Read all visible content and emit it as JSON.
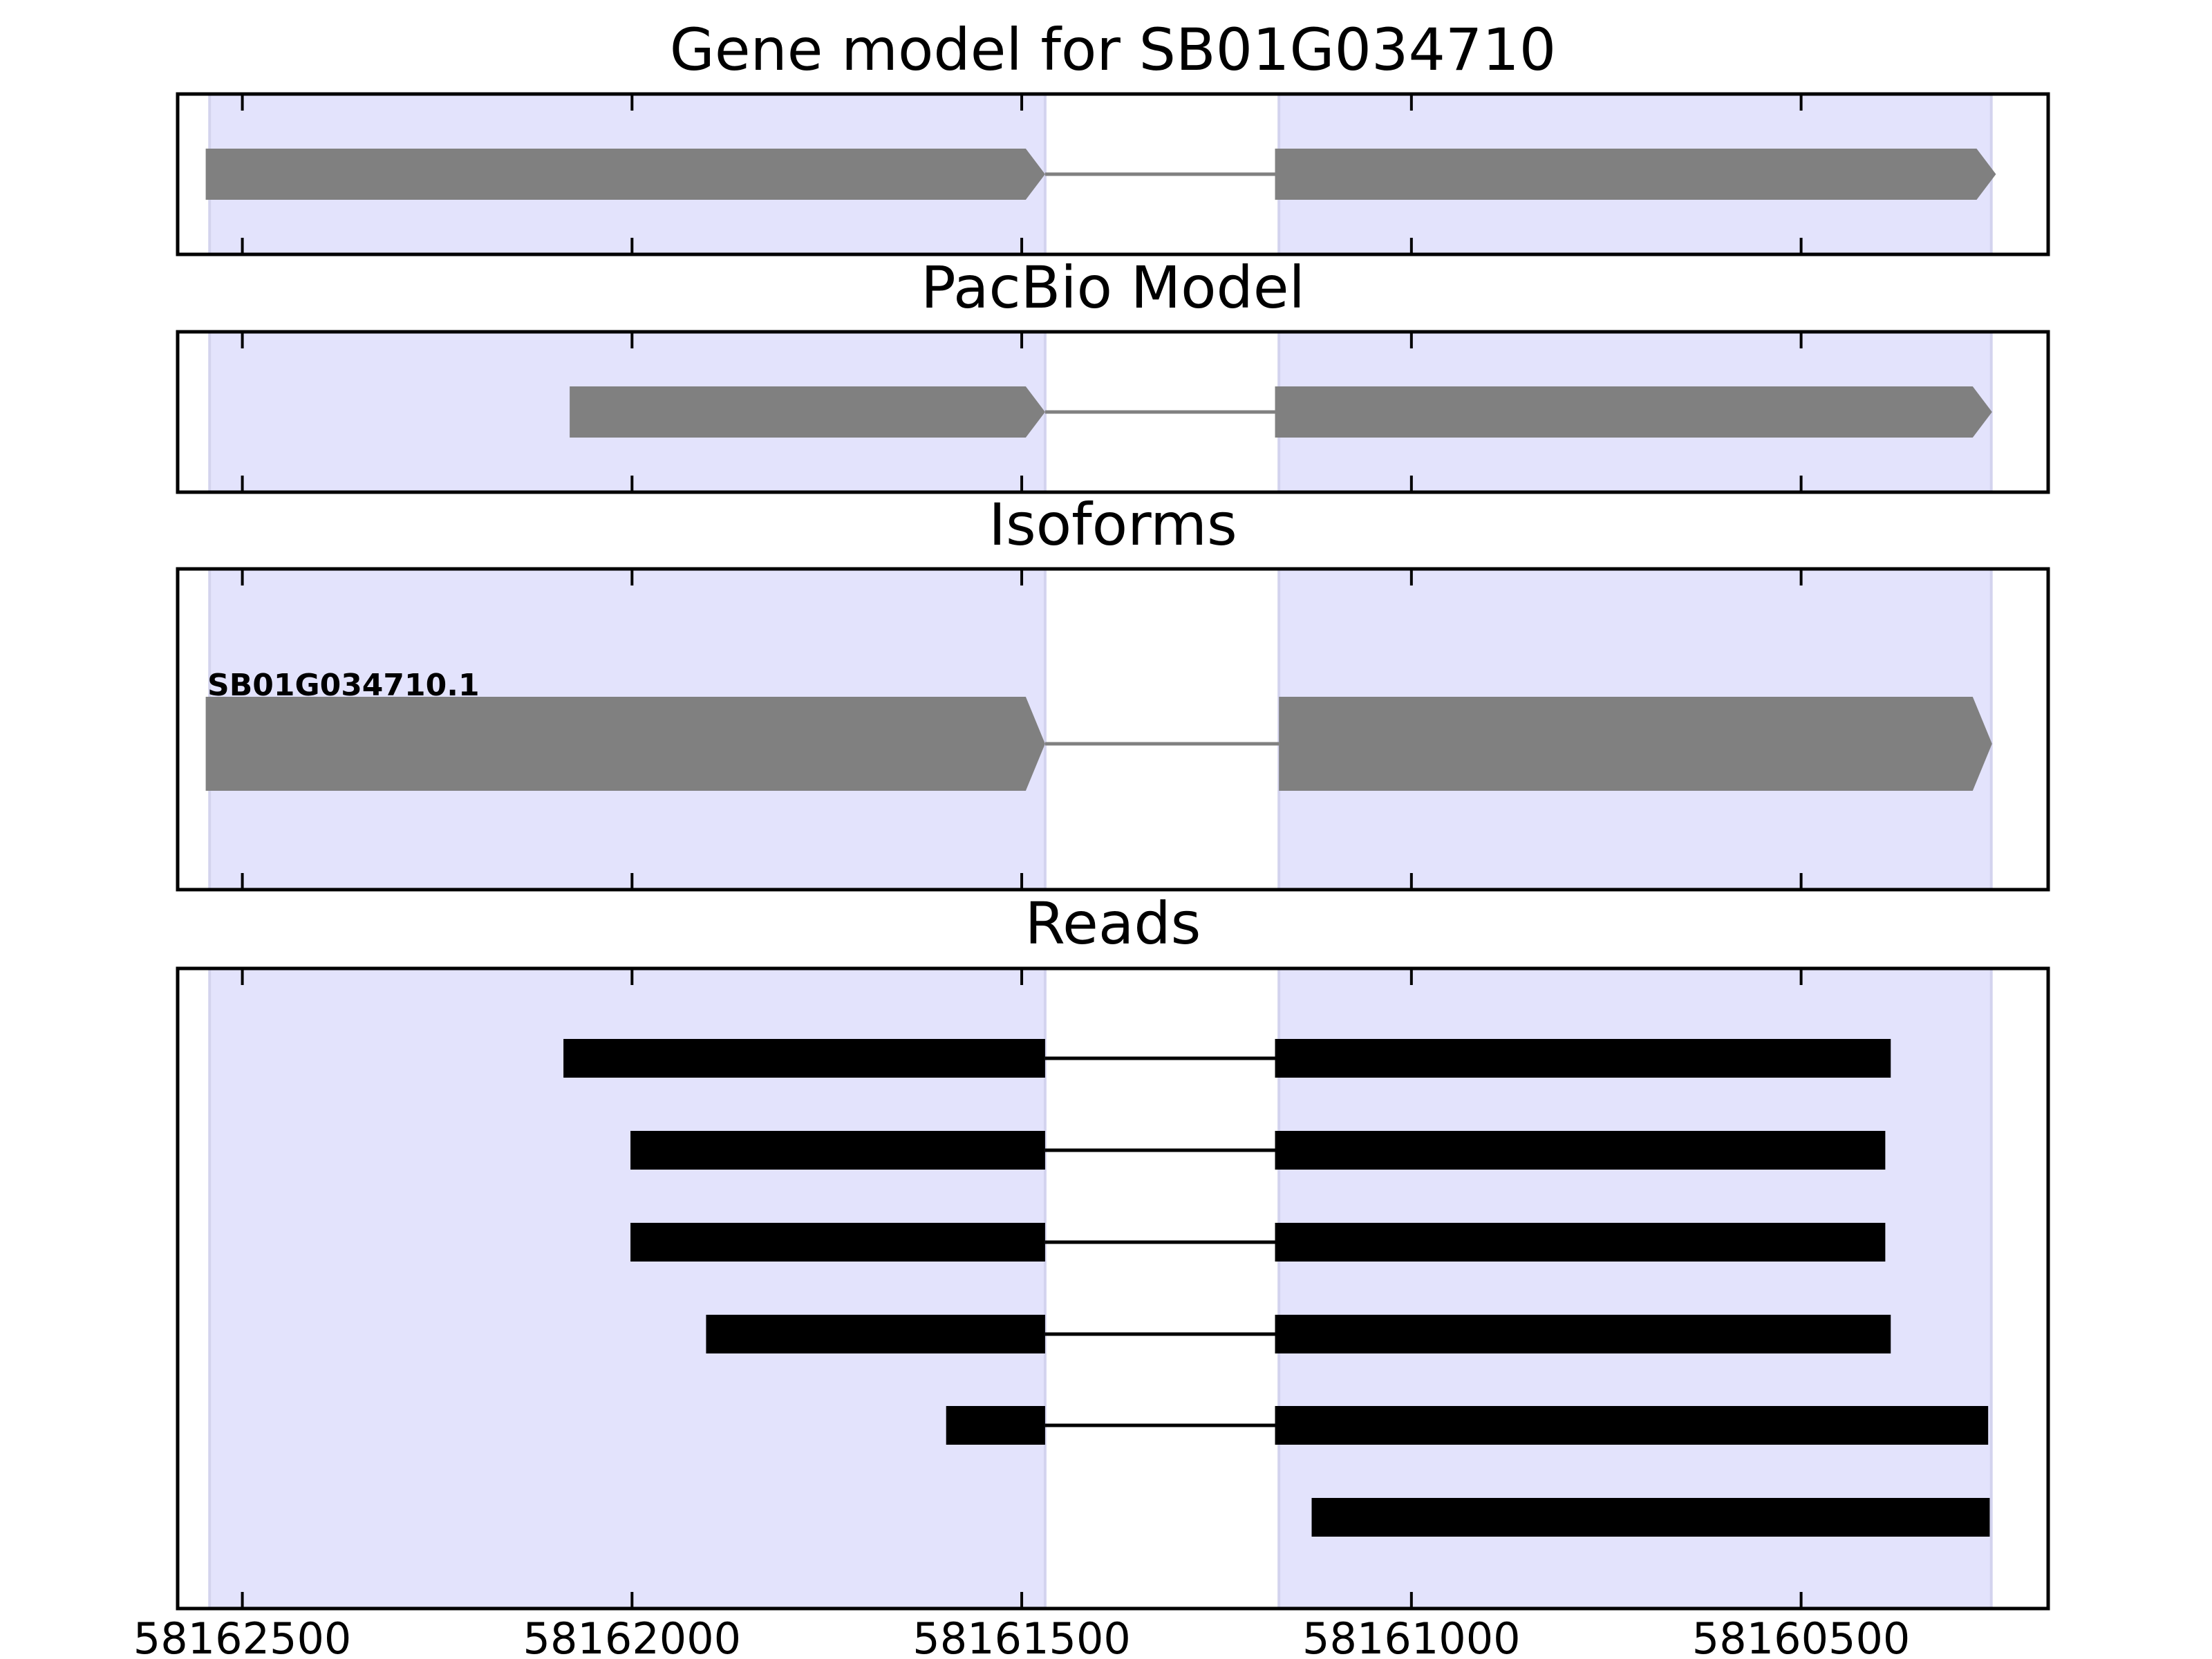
{
  "chart_data": {
    "type": "gene-track",
    "x_axis": {
      "ticks": [
        58162500,
        58162000,
        58161500,
        58161000,
        58160500
      ],
      "tick_labels": [
        "58162500",
        "58162000",
        "58161500",
        "58161000",
        "58160500"
      ],
      "range": [
        58162583,
        58160183
      ],
      "reversed": true
    },
    "exon_highlights": [
      {
        "start": 58162542,
        "end": 58161470
      },
      {
        "start": 58161170,
        "end": 58160256
      }
    ],
    "colors": {
      "highlight": "#e3e3fc",
      "model": "#808080",
      "read": "#000000",
      "frame": "#000000"
    },
    "panels": [
      {
        "title": "Gene model for SB01G034710",
        "tracks": [
          {
            "exons": [
              [
                58162547,
                58161470
              ],
              [
                58161175,
                58160250
              ]
            ],
            "arrow": true
          }
        ]
      },
      {
        "title": "PacBio Model",
        "tracks": [
          {
            "exons": [
              [
                58162080,
                58161470
              ],
              [
                58161175,
                58160255
              ]
            ],
            "arrow": true
          }
        ]
      },
      {
        "title": "Isoforms",
        "label": "SB01G034710.1",
        "tracks": [
          {
            "exons": [
              [
                58162547,
                58161470
              ],
              [
                58161170,
                58160255
              ]
            ],
            "arrow": true
          }
        ]
      },
      {
        "title": "Reads",
        "tracks": [
          {
            "exons": [
              [
                58162088,
                58161470
              ],
              [
                58161175,
                58160385
              ]
            ],
            "arrow": false
          },
          {
            "exons": [
              [
                58162002,
                58161470
              ],
              [
                58161175,
                58160392
              ]
            ],
            "arrow": false
          },
          {
            "exons": [
              [
                58162002,
                58161470
              ],
              [
                58161175,
                58160392
              ]
            ],
            "arrow": false
          },
          {
            "exons": [
              [
                58161905,
                58161470
              ],
              [
                58161175,
                58160385
              ]
            ],
            "arrow": false
          },
          {
            "exons": [
              [
                58161597,
                58161470
              ],
              [
                58161175,
                58160260
              ]
            ],
            "arrow": false
          },
          {
            "exons": [
              [
                58161128,
                58160258
              ]
            ],
            "arrow": false
          }
        ]
      }
    ]
  }
}
